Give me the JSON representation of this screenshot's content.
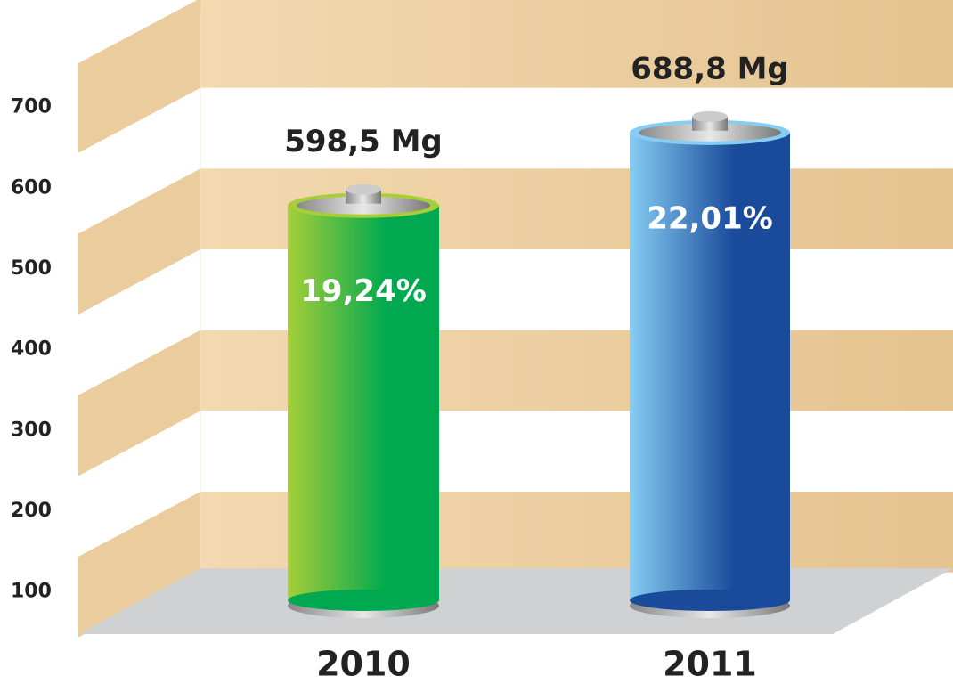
{
  "chart_data": {
    "type": "bar",
    "categories": [
      "2010",
      "2011"
    ],
    "values": [
      598.5,
      688.8
    ],
    "value_labels": [
      "598,5 Mg",
      "688,8 Mg"
    ],
    "share_labels": [
      "19,24%",
      "22,01%"
    ],
    "colors": [
      [
        "#a6ce39",
        "#00a94f"
      ],
      [
        "#86cdf3",
        "#1a4b9b"
      ]
    ],
    "ylim": [
      50,
      800
    ],
    "yticks": [
      100,
      200,
      300,
      400,
      500,
      600,
      700
    ]
  }
}
